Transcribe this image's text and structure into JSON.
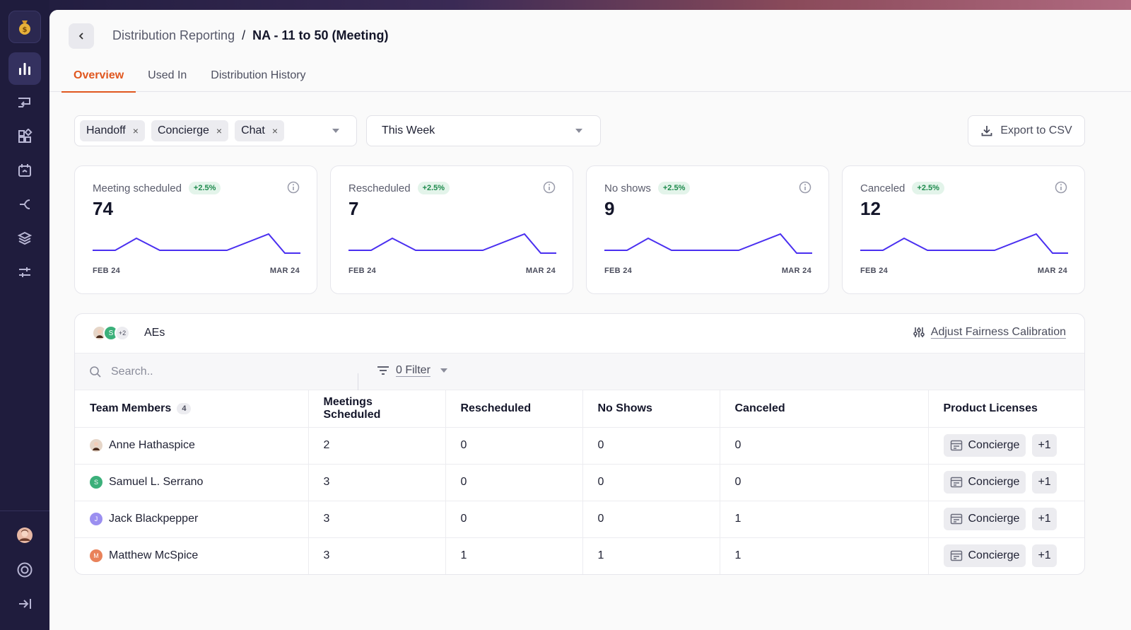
{
  "sidebar": {
    "logo_icon": "money-bag-icon",
    "items": [
      {
        "name": "analytics-icon",
        "active": true
      },
      {
        "name": "routing-icon",
        "active": false
      },
      {
        "name": "apps-icon",
        "active": false
      },
      {
        "name": "calendar-sync-icon",
        "active": false
      },
      {
        "name": "branch-icon",
        "active": false
      },
      {
        "name": "layers-icon",
        "active": false
      },
      {
        "name": "sliders-icon",
        "active": false
      }
    ],
    "bottom": [
      "user-avatar",
      "help-icon",
      "collapse-icon"
    ]
  },
  "header": {
    "breadcrumb_parent": "Distribution Reporting",
    "breadcrumb_sep": "/",
    "breadcrumb_current": "NA - 11 to 50 (Meeting)"
  },
  "tabs": [
    {
      "label": "Overview",
      "active": true
    },
    {
      "label": "Used In",
      "active": false
    },
    {
      "label": "Distribution History",
      "active": false
    }
  ],
  "filters": {
    "chips": [
      "Handoff",
      "Concierge",
      "Chat"
    ],
    "chip_remove": "×",
    "period": "This Week",
    "export_label": "Export to CSV"
  },
  "stats": [
    {
      "label": "Meeting scheduled",
      "change": "+2.5%",
      "value": "74",
      "start": "FEB 24",
      "end": "MAR 24"
    },
    {
      "label": "Rescheduled",
      "change": "+2.5%",
      "value": "7",
      "start": "FEB 24",
      "end": "MAR 24"
    },
    {
      "label": "No shows",
      "change": "+2.5%",
      "value": "9",
      "start": "FEB 24",
      "end": "MAR 24"
    },
    {
      "label": "Canceled",
      "change": "+2.5%",
      "value": "12",
      "start": "FEB 24",
      "end": "MAR 24"
    }
  ],
  "group": {
    "extra_count": "+2",
    "name": "AEs",
    "adjust_label": "Adjust Fairness Calibration"
  },
  "search": {
    "placeholder": "Search..",
    "filter_label": "0 Filter"
  },
  "table": {
    "headers": [
      "Team Members",
      "Meetings Scheduled",
      "Rescheduled",
      "No Shows",
      "Canceled",
      "Product Licenses"
    ],
    "member_count": "4",
    "rows": [
      {
        "name": "Anne Hathaspice",
        "initial": "",
        "color": "#e6d6c8",
        "scheduled": "2",
        "rescheduled": "0",
        "noshows": "0",
        "canceled": "0",
        "license": "Concierge",
        "more": "+1"
      },
      {
        "name": "Samuel L. Serrano",
        "initial": "S",
        "color": "#3bb07a",
        "scheduled": "3",
        "rescheduled": "0",
        "noshows": "0",
        "canceled": "0",
        "license": "Concierge",
        "more": "+1"
      },
      {
        "name": "Jack Blackpepper",
        "initial": "J",
        "color": "#9b8ff0",
        "scheduled": "3",
        "rescheduled": "0",
        "noshows": "0",
        "canceled": "1",
        "license": "Concierge",
        "more": "+1"
      },
      {
        "name": "Matthew McSpice",
        "initial": "M",
        "color": "#e9825a",
        "scheduled": "3",
        "rescheduled": "1",
        "noshows": "1",
        "canceled": "1",
        "license": "Concierge",
        "more": "+1"
      }
    ]
  },
  "colors": {
    "accent": "#e0571f",
    "sparkline": "#4a2ff0",
    "badge_bg": "#e3f4ea",
    "badge_text": "#1d8a4c",
    "sidebar_bg": "#1f1c3d"
  }
}
